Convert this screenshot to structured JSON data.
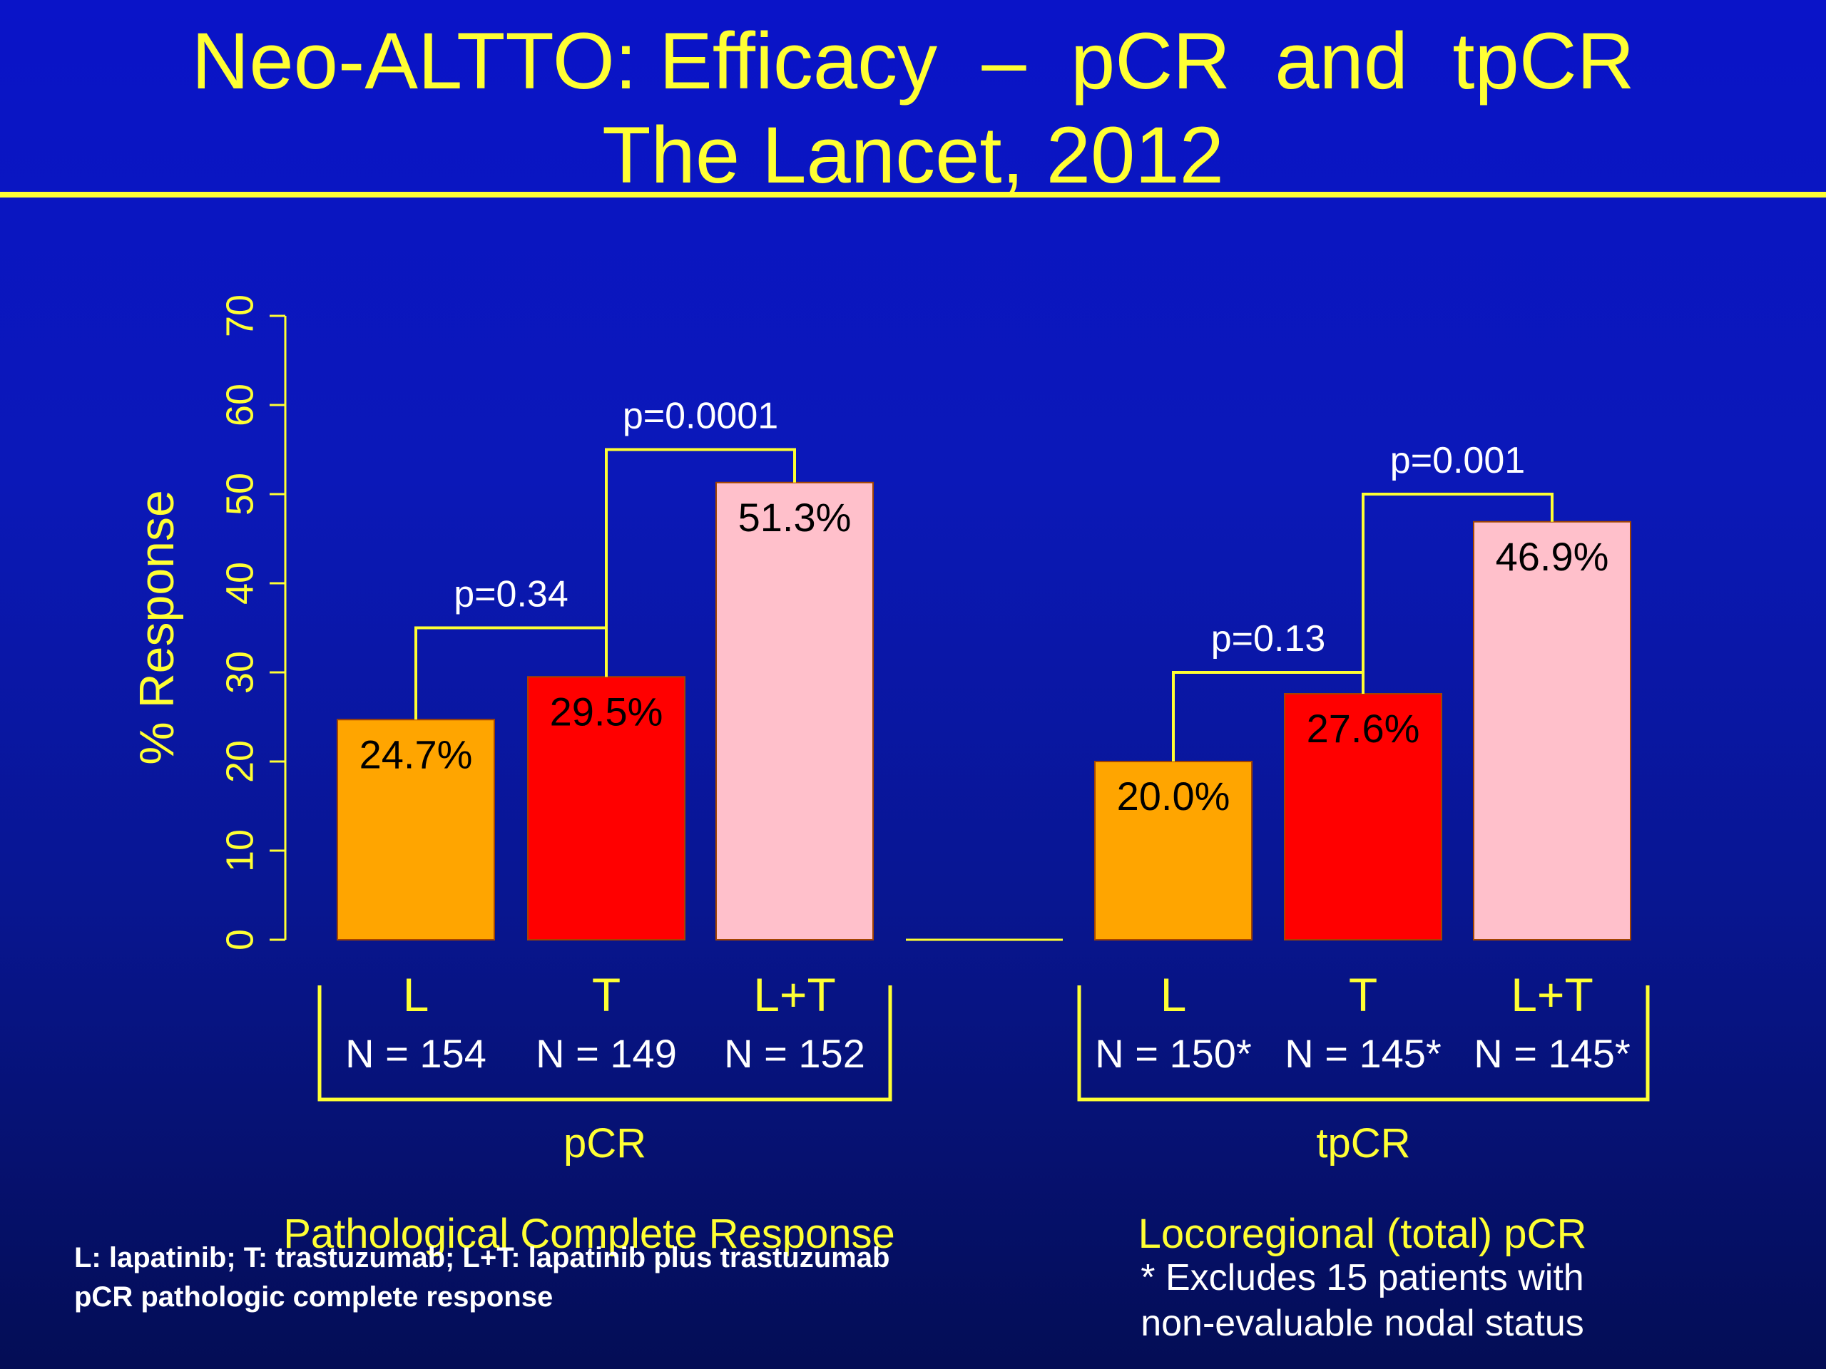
{
  "slide": {
    "title_line1": "Neo-ALTTO: Efficacy  –  pCR  and  tpCR",
    "title_line2": "The Lancet, 2012",
    "legend_line1": "L: lapatinib; T: trastuzumab; L+T: lapatinib plus trastuzumab",
    "legend_line2": "pCR pathologic complete response",
    "note_line1": "* Excludes 15 patients with",
    "note_line2": "non-evaluable nodal status"
  },
  "colors": {
    "text": "#ffff33",
    "L": "#ffa500",
    "T": "#ff0000",
    "L+T": "#ffc0cb"
  },
  "chart_data": {
    "type": "bar",
    "ylabel": "% Response",
    "ylim": [
      0,
      70
    ],
    "yticks": [
      0,
      10,
      20,
      30,
      40,
      50,
      60,
      70
    ],
    "groups": [
      {
        "name": "pCR",
        "description": "Pathological Complete Response",
        "bars": [
          {
            "label": "L",
            "n": "N = 154",
            "value": 24.7,
            "value_label": "24.7%",
            "color": "#ffa500"
          },
          {
            "label": "T",
            "n": "N = 149",
            "value": 29.5,
            "value_label": "29.5%",
            "color": "#ff0000"
          },
          {
            "label": "L+T",
            "n": "N = 152",
            "value": 51.3,
            "value_label": "51.3%",
            "color": "#ffc0cb"
          }
        ],
        "comparisons": [
          {
            "from": 0,
            "to": 1,
            "label": "p=0.34",
            "level": 35
          },
          {
            "from": 1,
            "to": 2,
            "label": "p=0.0001",
            "level": 55
          }
        ]
      },
      {
        "name": "tpCR",
        "description": "Locoregional (total) pCR",
        "bars": [
          {
            "label": "L",
            "n": "N = 150*",
            "value": 20.0,
            "value_label": "20.0%",
            "color": "#ffa500"
          },
          {
            "label": "T",
            "n": "N = 145*",
            "value": 27.6,
            "value_label": "27.6%",
            "color": "#ff0000"
          },
          {
            "label": "L+T",
            "n": "N = 145*",
            "value": 46.9,
            "value_label": "46.9%",
            "color": "#ffc0cb"
          }
        ],
        "comparisons": [
          {
            "from": 0,
            "to": 1,
            "label": "p=0.13",
            "level": 30
          },
          {
            "from": 1,
            "to": 2,
            "label": "p=0.001",
            "level": 50
          }
        ]
      }
    ]
  }
}
